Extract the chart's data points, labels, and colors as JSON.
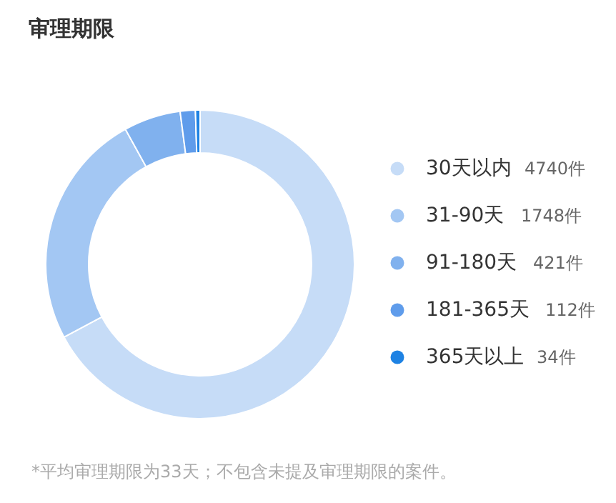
{
  "chart_data": {
    "type": "donut",
    "title": "审理期限",
    "categories": [
      "30天以内",
      "31-90天",
      "91-180天",
      "181-365天",
      "365天以上"
    ],
    "values": [
      4740,
      1748,
      421,
      112,
      34
    ],
    "value_labels": [
      "4740件",
      "1748件",
      "421件",
      "112件",
      "34件"
    ],
    "colors": [
      "#c6dcf7",
      "#a3c7f3",
      "#80b1ee",
      "#5f9ceb",
      "#1e82e3"
    ],
    "legend": "right",
    "annotations": [
      "*平均审理期限为33天；不包含未提及审理期限的案件。"
    ]
  }
}
